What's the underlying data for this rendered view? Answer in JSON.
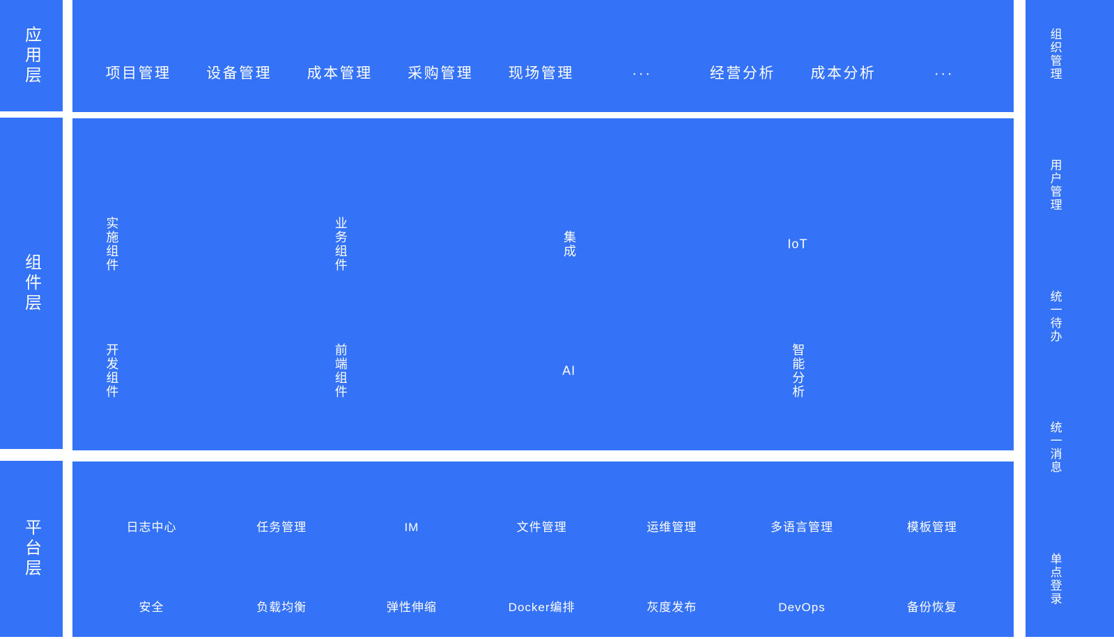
{
  "colors": {
    "block_blue": "#3472f7",
    "text_white": "#ffffff",
    "page_background": "#ffffff"
  },
  "layers": {
    "app": {
      "label": "应用层",
      "items": [
        "项目管理",
        "设备管理",
        "成本管理",
        "采购管理",
        "现场管理",
        "···",
        "经营分析",
        "成本分析",
        "···"
      ]
    },
    "component": {
      "label": "组件层",
      "rows": [
        [
          "实施组件",
          "业务组件",
          "集成",
          "IoT"
        ],
        [
          "开发组件",
          "前端组件",
          "AI",
          "智能分析"
        ]
      ]
    },
    "platform": {
      "label": "平台层",
      "rows": [
        [
          "日志中心",
          "任务管理",
          "IM",
          "文件管理",
          "运维管理",
          "多语言管理",
          "模板管理"
        ],
        [
          "安全",
          "负载均衡",
          "弹性伸缩",
          "Docker编排",
          "灰度发布",
          "DevOps",
          "备份恢复"
        ]
      ]
    },
    "sidebar": {
      "items": [
        "组织管理",
        "用户管理",
        "统一待办",
        "统一消息",
        "单点登录"
      ]
    }
  }
}
